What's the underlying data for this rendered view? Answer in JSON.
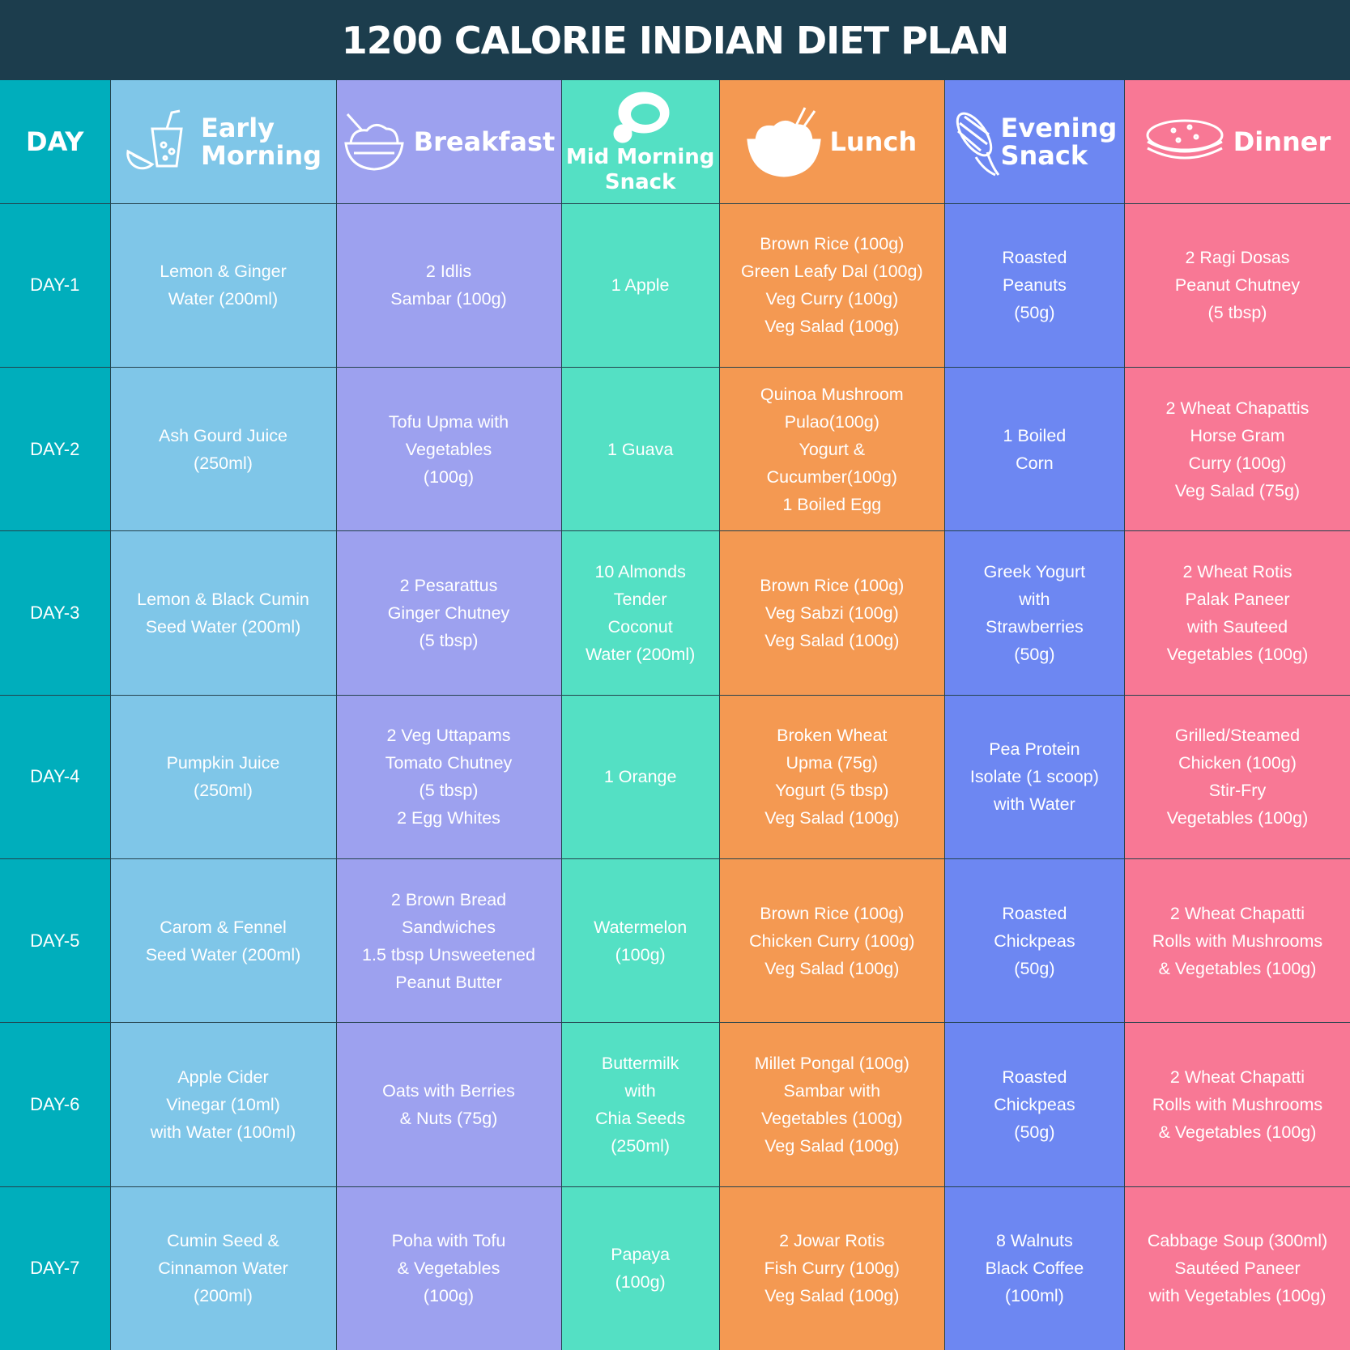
{
  "title": "1200 CALORIE INDIAN DIET PLAN",
  "headers": [
    [
      "DAY"
    ],
    [
      "Early",
      "Morning"
    ],
    [
      "Breakfast"
    ],
    [
      "Mid Morning",
      "Snack"
    ],
    [
      "Lunch"
    ],
    [
      "Evening",
      "Snack"
    ],
    [
      "Dinner"
    ]
  ],
  "rows": [
    {
      "day": "DAY-1",
      "meals": [
        [
          "Lemon & Ginger",
          "Water (200ml)"
        ],
        [
          "2 Idlis",
          "Sambar (100g)"
        ],
        [
          "1 Apple"
        ],
        [
          "Brown Rice (100g)",
          "Green Leafy Dal (100g)",
          "Veg Curry (100g)",
          "Veg Salad (100g)"
        ],
        [
          "Roasted",
          "Peanuts",
          "(50g)"
        ],
        [
          "2 Ragi Dosas",
          "Peanut Chutney",
          "(5 tbsp)"
        ]
      ]
    },
    {
      "day": "DAY-2",
      "meals": [
        [
          "Ash Gourd Juice",
          "(250ml)"
        ],
        [
          "Tofu Upma with",
          "Vegetables",
          "(100g)"
        ],
        [
          "1 Guava"
        ],
        [
          "Quinoa Mushroom",
          "Pulao(100g)",
          "Yogurt &",
          "Cucumber(100g)",
          "1 Boiled Egg"
        ],
        [
          "1 Boiled",
          "Corn"
        ],
        [
          "2 Wheat Chapattis",
          "Horse Gram",
          "Curry (100g)",
          "Veg Salad (75g)"
        ]
      ]
    },
    {
      "day": "DAY-3",
      "meals": [
        [
          "Lemon & Black Cumin",
          "Seed Water (200ml)"
        ],
        [
          "2 Pesarattus",
          "Ginger Chutney",
          "(5 tbsp)"
        ],
        [
          "10 Almonds",
          "Tender",
          "Coconut",
          "Water (200ml)"
        ],
        [
          "Brown Rice (100g)",
          "Veg Sabzi (100g)",
          "Veg Salad (100g)"
        ],
        [
          "Greek Yogurt",
          "with",
          "Strawberries",
          "(50g)"
        ],
        [
          "2 Wheat Rotis",
          "Palak Paneer",
          "with Sauteed",
          "Vegetables (100g)"
        ]
      ]
    },
    {
      "day": "DAY-4",
      "meals": [
        [
          "Pumpkin Juice",
          "(250ml)"
        ],
        [
          "2 Veg Uttapams",
          "Tomato Chutney",
          "(5 tbsp)",
          "2 Egg Whites"
        ],
        [
          "1 Orange"
        ],
        [
          "Broken Wheat",
          "Upma (75g)",
          "Yogurt (5 tbsp)",
          "Veg Salad (100g)"
        ],
        [
          "Pea Protein",
          "Isolate (1 scoop)",
          "with Water"
        ],
        [
          "Grilled/Steamed",
          "Chicken (100g)",
          "Stir-Fry",
          "Vegetables (100g)"
        ]
      ]
    },
    {
      "day": "DAY-5",
      "meals": [
        [
          "Carom & Fennel",
          "Seed Water (200ml)"
        ],
        [
          "2 Brown Bread",
          "Sandwiches",
          "1.5 tbsp Unsweetened",
          "Peanut Butter"
        ],
        [
          "Watermelon",
          "(100g)"
        ],
        [
          "Brown Rice (100g)",
          "Chicken Curry (100g)",
          "Veg Salad (100g)"
        ],
        [
          "Roasted",
          "Chickpeas",
          "(50g)"
        ],
        [
          "2 Wheat Chapatti",
          "Rolls with Mushrooms",
          "& Vegetables (100g)"
        ]
      ]
    },
    {
      "day": "DAY-6",
      "meals": [
        [
          "Apple Cider",
          "Vinegar (10ml)",
          "with Water (100ml)"
        ],
        [
          "Oats with Berries",
          "& Nuts (75g)"
        ],
        [
          "Buttermilk",
          "with",
          "Chia Seeds",
          "(250ml)"
        ],
        [
          "Millet Pongal (100g)",
          "Sambar with",
          "Vegetables (100g)",
          "Veg Salad (100g)"
        ],
        [
          "Roasted",
          "Chickpeas",
          "(50g)"
        ],
        [
          "2 Wheat Chapatti",
          "Rolls with Mushrooms",
          "& Vegetables (100g)"
        ]
      ]
    },
    {
      "day": "DAY-7",
      "meals": [
        [
          "Cumin Seed &",
          "Cinnamon Water",
          "(200ml)"
        ],
        [
          "Poha with Tofu",
          "& Vegetables",
          "(100g)"
        ],
        [
          "Papaya",
          "(100g)"
        ],
        [
          "2 Jowar Rotis",
          "Fish Curry (100g)",
          "Veg Salad (100g)"
        ],
        [
          "8 Walnuts",
          "Black Coffee",
          "(100ml)"
        ],
        [
          "Cabbage Soup (300ml)",
          "Sautéed Paneer",
          "with Vegetables (100g)"
        ]
      ]
    }
  ]
}
